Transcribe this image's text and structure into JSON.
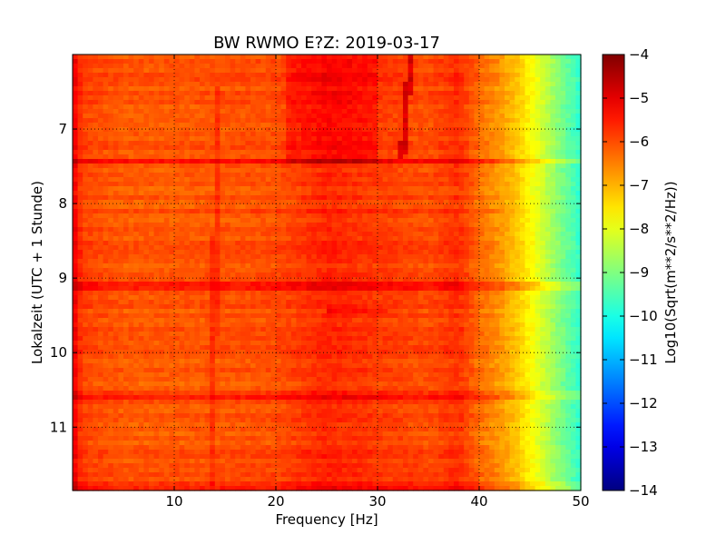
{
  "chart_data": {
    "type": "heatmap",
    "title": "BW RWMO E?Z: 2019-03-17",
    "xlabel": "Frequency [Hz]",
    "ylabel": "Lokalzeit (UTC + 1 Stunde)",
    "colorbar_label": "Log10(Sqrt(m**2/s**2/Hz))",
    "xlim": [
      0,
      50
    ],
    "ylim": [
      6.0,
      11.85
    ],
    "y_inverted": true,
    "x_ticks": [
      10,
      20,
      30,
      40,
      50
    ],
    "x_tick_labels": [
      "10",
      "20",
      "30",
      "40",
      "50"
    ],
    "y_ticks": [
      7,
      8,
      9,
      10,
      11
    ],
    "y_tick_labels": [
      "7",
      "8",
      "9",
      "10",
      "11"
    ],
    "colorbar": {
      "colormap": "jet",
      "range": [
        -14,
        -4
      ],
      "ticks": [
        -4,
        -5,
        -6,
        -7,
        -8,
        -9,
        -10,
        -11,
        -12,
        -13,
        -14
      ],
      "tick_labels": [
        "−4",
        "−5",
        "−6",
        "−7",
        "−8",
        "−9",
        "−10",
        "−11",
        "−12",
        "−13",
        "−14"
      ]
    },
    "grid": true,
    "grid_style": "dotted",
    "spectral_profile": {
      "frequency_hz": [
        0,
        1,
        5,
        10,
        20,
        25,
        30,
        35,
        38,
        40,
        42,
        44,
        46,
        48,
        50
      ],
      "log10_amplitude": [
        -5.0,
        -5.9,
        -6.1,
        -6.1,
        -6.0,
        -5.6,
        -5.8,
        -6.0,
        -5.7,
        -6.3,
        -6.7,
        -7.3,
        -8.1,
        -9.0,
        -9.8
      ]
    },
    "features": [
      {
        "kind": "band",
        "time": 7.42,
        "delta": 0.6,
        "f_range": [
          0,
          50
        ]
      },
      {
        "kind": "band",
        "time": 9.1,
        "delta": 0.7,
        "f_range": [
          0,
          50
        ]
      },
      {
        "kind": "band",
        "time": 9.45,
        "delta": 0.5,
        "f_range": [
          25,
          31
        ]
      },
      {
        "kind": "band",
        "time": 10.57,
        "delta": 0.4,
        "f_range": [
          0,
          50
        ]
      },
      {
        "kind": "band",
        "time": 11.8,
        "delta": 0.5,
        "f_range": [
          0,
          50
        ]
      },
      {
        "kind": "line",
        "freq_start": 33.3,
        "freq_end": 32.4,
        "time_range": [
          6.0,
          7.4
        ],
        "delta": 1.0
      },
      {
        "kind": "line",
        "freq_start": 14.2,
        "freq_end": 13.8,
        "time_range": [
          6.4,
          11.8
        ],
        "delta": 0.35
      }
    ]
  }
}
